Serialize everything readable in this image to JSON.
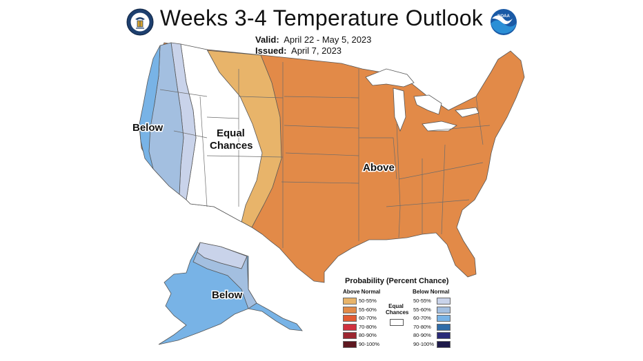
{
  "header": {
    "title": "Weeks 3-4 Temperature Outlook",
    "valid_label": "Valid:",
    "valid_value": "April 22 - May 5, 2023",
    "issued_label": "Issued:",
    "issued_value": "April 7, 2023"
  },
  "logos": {
    "left": "DEPARTMENT OF COMMERCE seal",
    "right": "NOAA"
  },
  "map": {
    "labels": {
      "below_west": "Below",
      "equal_line1": "Equal",
      "equal_line2": "Chances",
      "above": "Above",
      "below_alaska": "Below"
    },
    "colors": {
      "above_50_55": "#e8b46a",
      "above_55_60": "#e28a48",
      "equal": "#ffffff",
      "below_50_55": "#c9d3ea",
      "below_55_60": "#a3bfe0",
      "below_60_70": "#78b3e6",
      "border": "#555555"
    }
  },
  "legend": {
    "title": "Probability (Percent Chance)",
    "above_heading": "Above Normal",
    "below_heading": "Below Normal",
    "equal_line1": "Equal",
    "equal_line2": "Chances",
    "above": [
      {
        "label": "50-55%",
        "color": "#e8b46a"
      },
      {
        "label": "55-60%",
        "color": "#e28a48"
      },
      {
        "label": "60-70%",
        "color": "#e35b33"
      },
      {
        "label": "70-80%",
        "color": "#d0313f"
      },
      {
        "label": "80-90%",
        "color": "#9c2630"
      },
      {
        "label": "90-100%",
        "color": "#5e1820"
      }
    ],
    "below": [
      {
        "label": "50-55%",
        "color": "#c9d3ea"
      },
      {
        "label": "55-60%",
        "color": "#a3bfe0"
      },
      {
        "label": "60-70%",
        "color": "#78b3e6"
      },
      {
        "label": "70-80%",
        "color": "#2f6ca8"
      },
      {
        "label": "80-90%",
        "color": "#2a2a78"
      },
      {
        "label": "90-100%",
        "color": "#1e1a4a"
      }
    ]
  }
}
